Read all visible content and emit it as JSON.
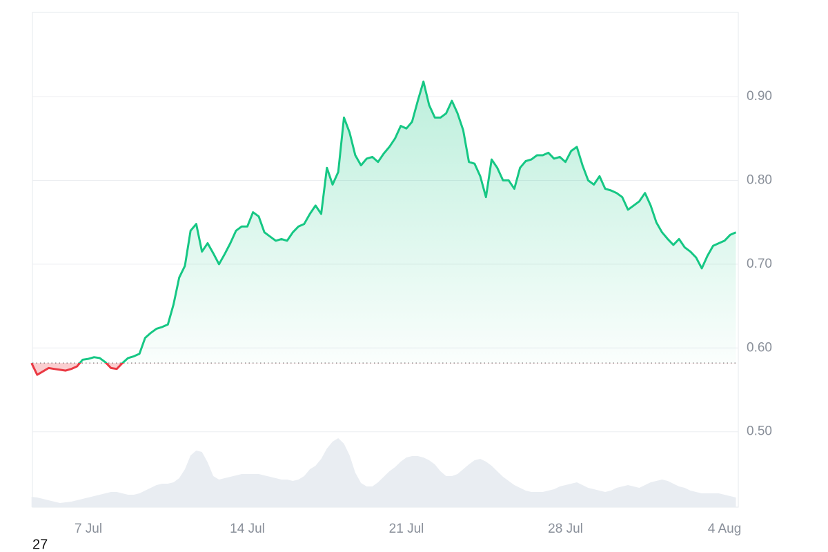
{
  "chart_data": {
    "type": "line",
    "categories": [
      null,
      null,
      null,
      null,
      null,
      null,
      null,
      null,
      null,
      null,
      "7 Jul",
      null,
      null,
      null,
      null,
      null,
      null,
      null,
      null,
      null,
      null,
      null,
      null,
      null,
      null,
      null,
      null,
      null,
      null,
      null,
      null,
      null,
      null,
      null,
      null,
      null,
      null,
      null,
      "14 Jul",
      null,
      null,
      null,
      null,
      null,
      null,
      null,
      null,
      null,
      null,
      null,
      null,
      null,
      null,
      null,
      null,
      null,
      null,
      null,
      null,
      null,
      null,
      null,
      null,
      null,
      null,
      null,
      "21 Jul",
      null,
      null,
      null,
      null,
      null,
      null,
      null,
      null,
      null,
      null,
      null,
      null,
      null,
      null,
      null,
      null,
      null,
      null,
      null,
      null,
      null,
      null,
      null,
      null,
      null,
      null,
      null,
      "28 Jul",
      null,
      null,
      null,
      null,
      null,
      null,
      null,
      null,
      null,
      null,
      null,
      null,
      null,
      null,
      null,
      null,
      null,
      null,
      null,
      null,
      null,
      null,
      null,
      null,
      null,
      null,
      null,
      "4 Aug",
      null,
      null
    ],
    "values": [
      0.582,
      0.568,
      0.572,
      0.576,
      0.575,
      0.574,
      0.573,
      0.575,
      0.578,
      0.586,
      0.587,
      0.589,
      0.588,
      0.583,
      0.576,
      0.575,
      0.582,
      0.588,
      0.59,
      0.593,
      0.612,
      0.618,
      0.623,
      0.625,
      0.628,
      0.652,
      0.684,
      0.698,
      0.74,
      0.748,
      0.715,
      0.725,
      0.713,
      0.7,
      0.712,
      0.725,
      0.74,
      0.745,
      0.745,
      0.762,
      0.757,
      0.738,
      0.733,
      0.728,
      0.73,
      0.728,
      0.738,
      0.745,
      0.748,
      0.76,
      0.77,
      0.76,
      0.815,
      0.795,
      0.81,
      0.875,
      0.857,
      0.83,
      0.818,
      0.826,
      0.828,
      0.822,
      0.832,
      0.84,
      0.85,
      0.865,
      0.862,
      0.87,
      0.895,
      0.918,
      0.89,
      0.875,
      0.875,
      0.88,
      0.895,
      0.88,
      0.86,
      0.822,
      0.82,
      0.805,
      0.78,
      0.825,
      0.815,
      0.8,
      0.8,
      0.79,
      0.815,
      0.823,
      0.825,
      0.83,
      0.83,
      0.833,
      0.826,
      0.828,
      0.822,
      0.835,
      0.84,
      0.818,
      0.8,
      0.795,
      0.805,
      0.79,
      0.788,
      0.785,
      0.78,
      0.765,
      0.77,
      0.775,
      0.785,
      0.77,
      0.75,
      0.738,
      0.73,
      0.723,
      0.73,
      0.72,
      0.715,
      0.708,
      0.695,
      0.71,
      0.722,
      0.725,
      0.728,
      0.735,
      0.738
    ],
    "up_color": "#16c784",
    "down_color": "#ea3943",
    "baseline": 0.582,
    "volume": {
      "color": "#e9edf2",
      "values": [
        15,
        14,
        12,
        10,
        8,
        6,
        7,
        8,
        10,
        12,
        14,
        16,
        18,
        20,
        22,
        22,
        20,
        18,
        18,
        20,
        24,
        28,
        32,
        34,
        34,
        36,
        42,
        55,
        75,
        82,
        80,
        65,
        45,
        40,
        42,
        44,
        46,
        48,
        48,
        48,
        48,
        46,
        44,
        42,
        40,
        40,
        38,
        40,
        45,
        55,
        60,
        70,
        85,
        95,
        100,
        92,
        75,
        50,
        35,
        30,
        30,
        36,
        44,
        52,
        58,
        66,
        72,
        74,
        74,
        72,
        68,
        62,
        52,
        45,
        45,
        48,
        55,
        62,
        68,
        70,
        66,
        60,
        52,
        44,
        38,
        32,
        28,
        24,
        22,
        22,
        22,
        24,
        26,
        30,
        32,
        34,
        36,
        32,
        28,
        26,
        24,
        22,
        24,
        28,
        30,
        32,
        30,
        28,
        32,
        36,
        38,
        40,
        38,
        34,
        30,
        28,
        24,
        22,
        20,
        20,
        20,
        20,
        18,
        16,
        14
      ]
    },
    "ylim": [
      0.41,
      1.0
    ],
    "yticks": [
      {
        "value": 0.5,
        "label": "0.50"
      },
      {
        "value": 0.6,
        "label": "0.60"
      },
      {
        "value": 0.7,
        "label": "0.70"
      },
      {
        "value": 0.8,
        "label": "0.80"
      },
      {
        "value": 0.9,
        "label": "0.90"
      }
    ],
    "grid": true,
    "annotation": "27"
  }
}
